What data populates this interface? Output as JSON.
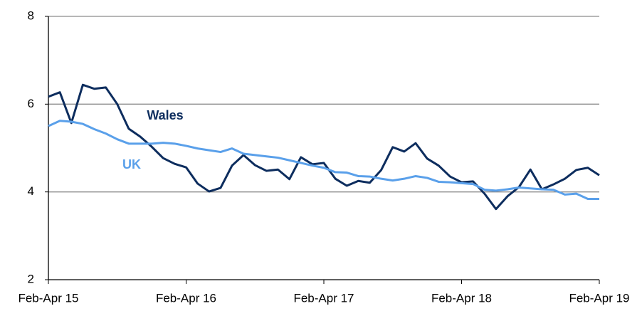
{
  "chart_data": {
    "type": "line",
    "categories": [
      "Feb-Apr 15",
      null,
      null,
      null,
      null,
      null,
      null,
      null,
      null,
      null,
      null,
      null,
      "Feb-Apr 16",
      null,
      null,
      null,
      null,
      null,
      null,
      null,
      null,
      null,
      null,
      null,
      "Feb-Apr 17",
      null,
      null,
      null,
      null,
      null,
      null,
      null,
      null,
      null,
      null,
      null,
      "Feb-Apr 18",
      null,
      null,
      null,
      null,
      null,
      null,
      null,
      null,
      null,
      null,
      null,
      "Feb-Apr 19"
    ],
    "series": [
      {
        "name": "Wales",
        "color": "#0d2d5e",
        "values": [
          6.17,
          6.27,
          5.57,
          6.44,
          6.35,
          6.38,
          6.0,
          5.44,
          5.26,
          5.03,
          4.77,
          4.64,
          4.56,
          4.19,
          4.01,
          4.09,
          4.6,
          4.84,
          4.61,
          4.48,
          4.51,
          4.29,
          4.79,
          4.63,
          4.66,
          4.3,
          4.14,
          4.25,
          4.21,
          4.5,
          5.02,
          4.92,
          5.11,
          4.76,
          4.6,
          4.35,
          4.22,
          4.24,
          3.96,
          3.61,
          3.9,
          4.11,
          4.51,
          4.06,
          4.17,
          4.3,
          4.5,
          4.55,
          4.38
        ]
      },
      {
        "name": "UK",
        "color": "#5aa0ea",
        "values": [
          5.5,
          5.62,
          5.6,
          5.55,
          5.43,
          5.33,
          5.2,
          5.1,
          5.1,
          5.1,
          5.12,
          5.1,
          5.05,
          4.99,
          4.95,
          4.91,
          4.99,
          4.87,
          4.84,
          4.81,
          4.78,
          4.72,
          4.66,
          4.6,
          4.55,
          4.45,
          4.44,
          4.36,
          4.35,
          4.3,
          4.26,
          4.3,
          4.36,
          4.32,
          4.23,
          4.22,
          4.2,
          4.18,
          4.05,
          4.03,
          4.06,
          4.1,
          4.08,
          4.06,
          4.05,
          3.94,
          3.96,
          3.84,
          3.84
        ]
      }
    ],
    "ylim": [
      2,
      8
    ],
    "yticks": [
      2,
      4,
      6,
      8
    ],
    "grid": true
  }
}
